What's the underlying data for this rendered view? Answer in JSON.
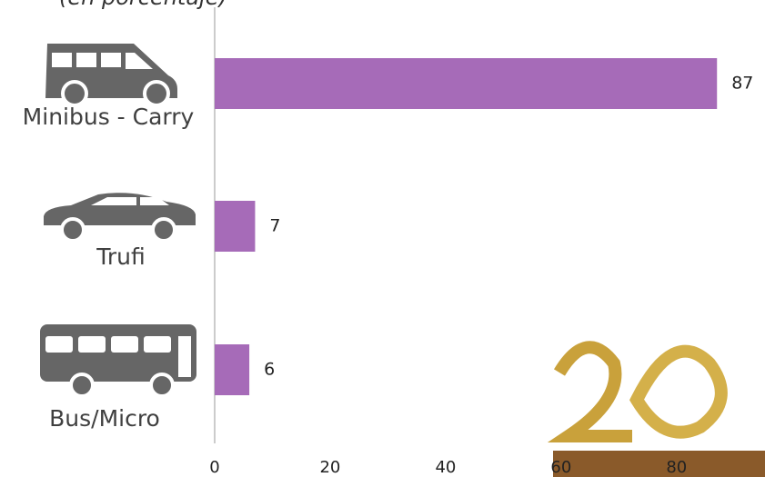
{
  "chart_data": {
    "type": "bar",
    "orientation": "horizontal",
    "subtitle": "(en porcentaje)",
    "categories": [
      "Minibus - Carry",
      "Trufi",
      "Bus/Micro"
    ],
    "values": [
      87,
      7,
      6
    ],
    "color": "#a66bb8",
    "xlim": [
      0,
      95
    ],
    "xticks": [
      0,
      20,
      40,
      60,
      80
    ]
  }
}
